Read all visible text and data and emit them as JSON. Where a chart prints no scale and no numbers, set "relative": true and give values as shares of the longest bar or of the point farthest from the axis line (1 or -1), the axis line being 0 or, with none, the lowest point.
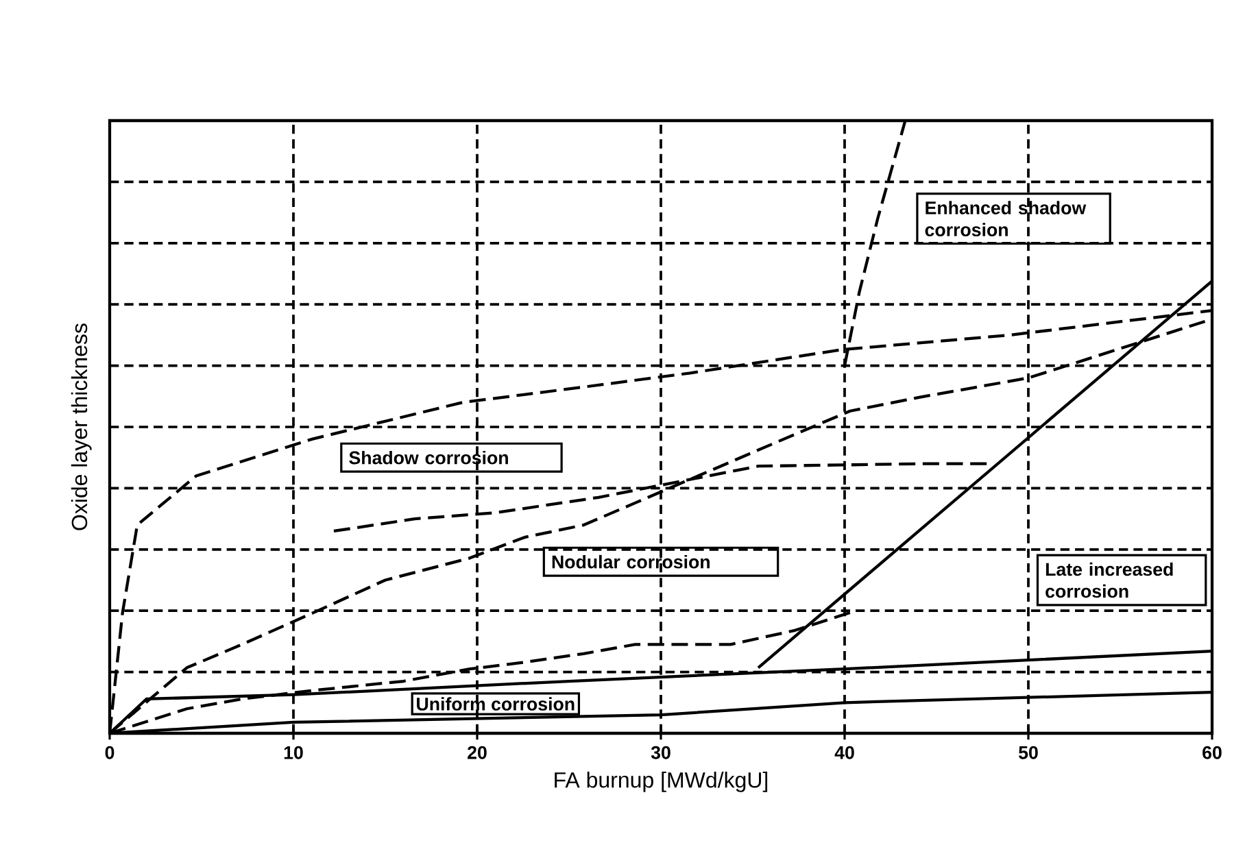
{
  "chart_data": {
    "type": "line",
    "xlabel": "FA burnup [MWd/kgU]",
    "ylabel": "Oxide layer thickness",
    "relative": true,
    "xlim": [
      0,
      60
    ],
    "xticks": [
      0,
      10,
      20,
      30,
      40,
      50,
      60
    ],
    "tick_labels": "x",
    "grid": true,
    "series": [
      {
        "color": "#000000",
        "line_style": "solid",
        "x": [
          0,
          2,
          10,
          25,
          40,
          60
        ],
        "values": [
          0,
          0.056,
          0.063,
          0.085,
          0.105,
          0.134
        ]
      },
      {
        "color": "#000000",
        "line_style": "solid",
        "x": [
          0,
          10,
          30,
          40,
          60
        ],
        "values": [
          0,
          0.018,
          0.03,
          0.05,
          0.067
        ]
      },
      {
        "color": "#000000",
        "line_style": "dashed",
        "x": [
          0,
          4.2,
          7.2,
          11.1,
          16,
          19.6,
          22.6,
          25.8,
          28.6,
          33.8,
          37.3,
          40.3
        ],
        "values": [
          0,
          0.04,
          0.056,
          0.07,
          0.085,
          0.105,
          0.116,
          0.13,
          0.145,
          0.145,
          0.168,
          0.197
        ]
      },
      {
        "color": "#000000",
        "line_style": "dashed",
        "x": [
          0,
          4.2,
          7.2,
          11.1,
          15,
          19.6,
          22.6,
          25.8,
          28.6,
          33.8,
          37.3,
          40.3,
          44,
          50,
          60
        ],
        "values": [
          0,
          0.107,
          0.145,
          0.197,
          0.25,
          0.286,
          0.32,
          0.34,
          0.376,
          0.443,
          0.488,
          0.526,
          0.548,
          0.58,
          0.676
        ]
      },
      {
        "color": "#000000",
        "line_style": "dashed",
        "x": [
          0,
          0.7,
          1.5,
          4.7,
          11,
          19.2,
          26,
          31.6,
          39.8,
          49,
          60
        ],
        "values": [
          0,
          0.197,
          0.34,
          0.42,
          0.48,
          0.54,
          0.566,
          0.588,
          0.626,
          0.65,
          0.69
        ]
      },
      {
        "color": "#000000",
        "line_style": "dashed",
        "x": [
          12.2,
          16.6,
          21,
          26.6,
          35.3,
          44.5,
          48
        ],
        "values": [
          0.33,
          0.35,
          0.36,
          0.385,
          0.436,
          0.44,
          0.44
        ]
      },
      {
        "color": "#000000",
        "line_style": "dashed",
        "x": [
          40,
          40.3,
          40.8,
          41.8,
          43.3
        ],
        "values": [
          0.6,
          0.645,
          0.72,
          0.84,
          1
        ]
      },
      {
        "color": "#000000",
        "line_style": "solid",
        "x": [
          35.3,
          60
        ],
        "values": [
          0.107,
          0.738
        ]
      }
    ],
    "annotations": [
      "Shadow corrosion",
      "Nodular corrosion",
      "Uniform corrosion",
      "Late increased corrosion",
      "Enhanced shadow corrosion"
    ]
  }
}
